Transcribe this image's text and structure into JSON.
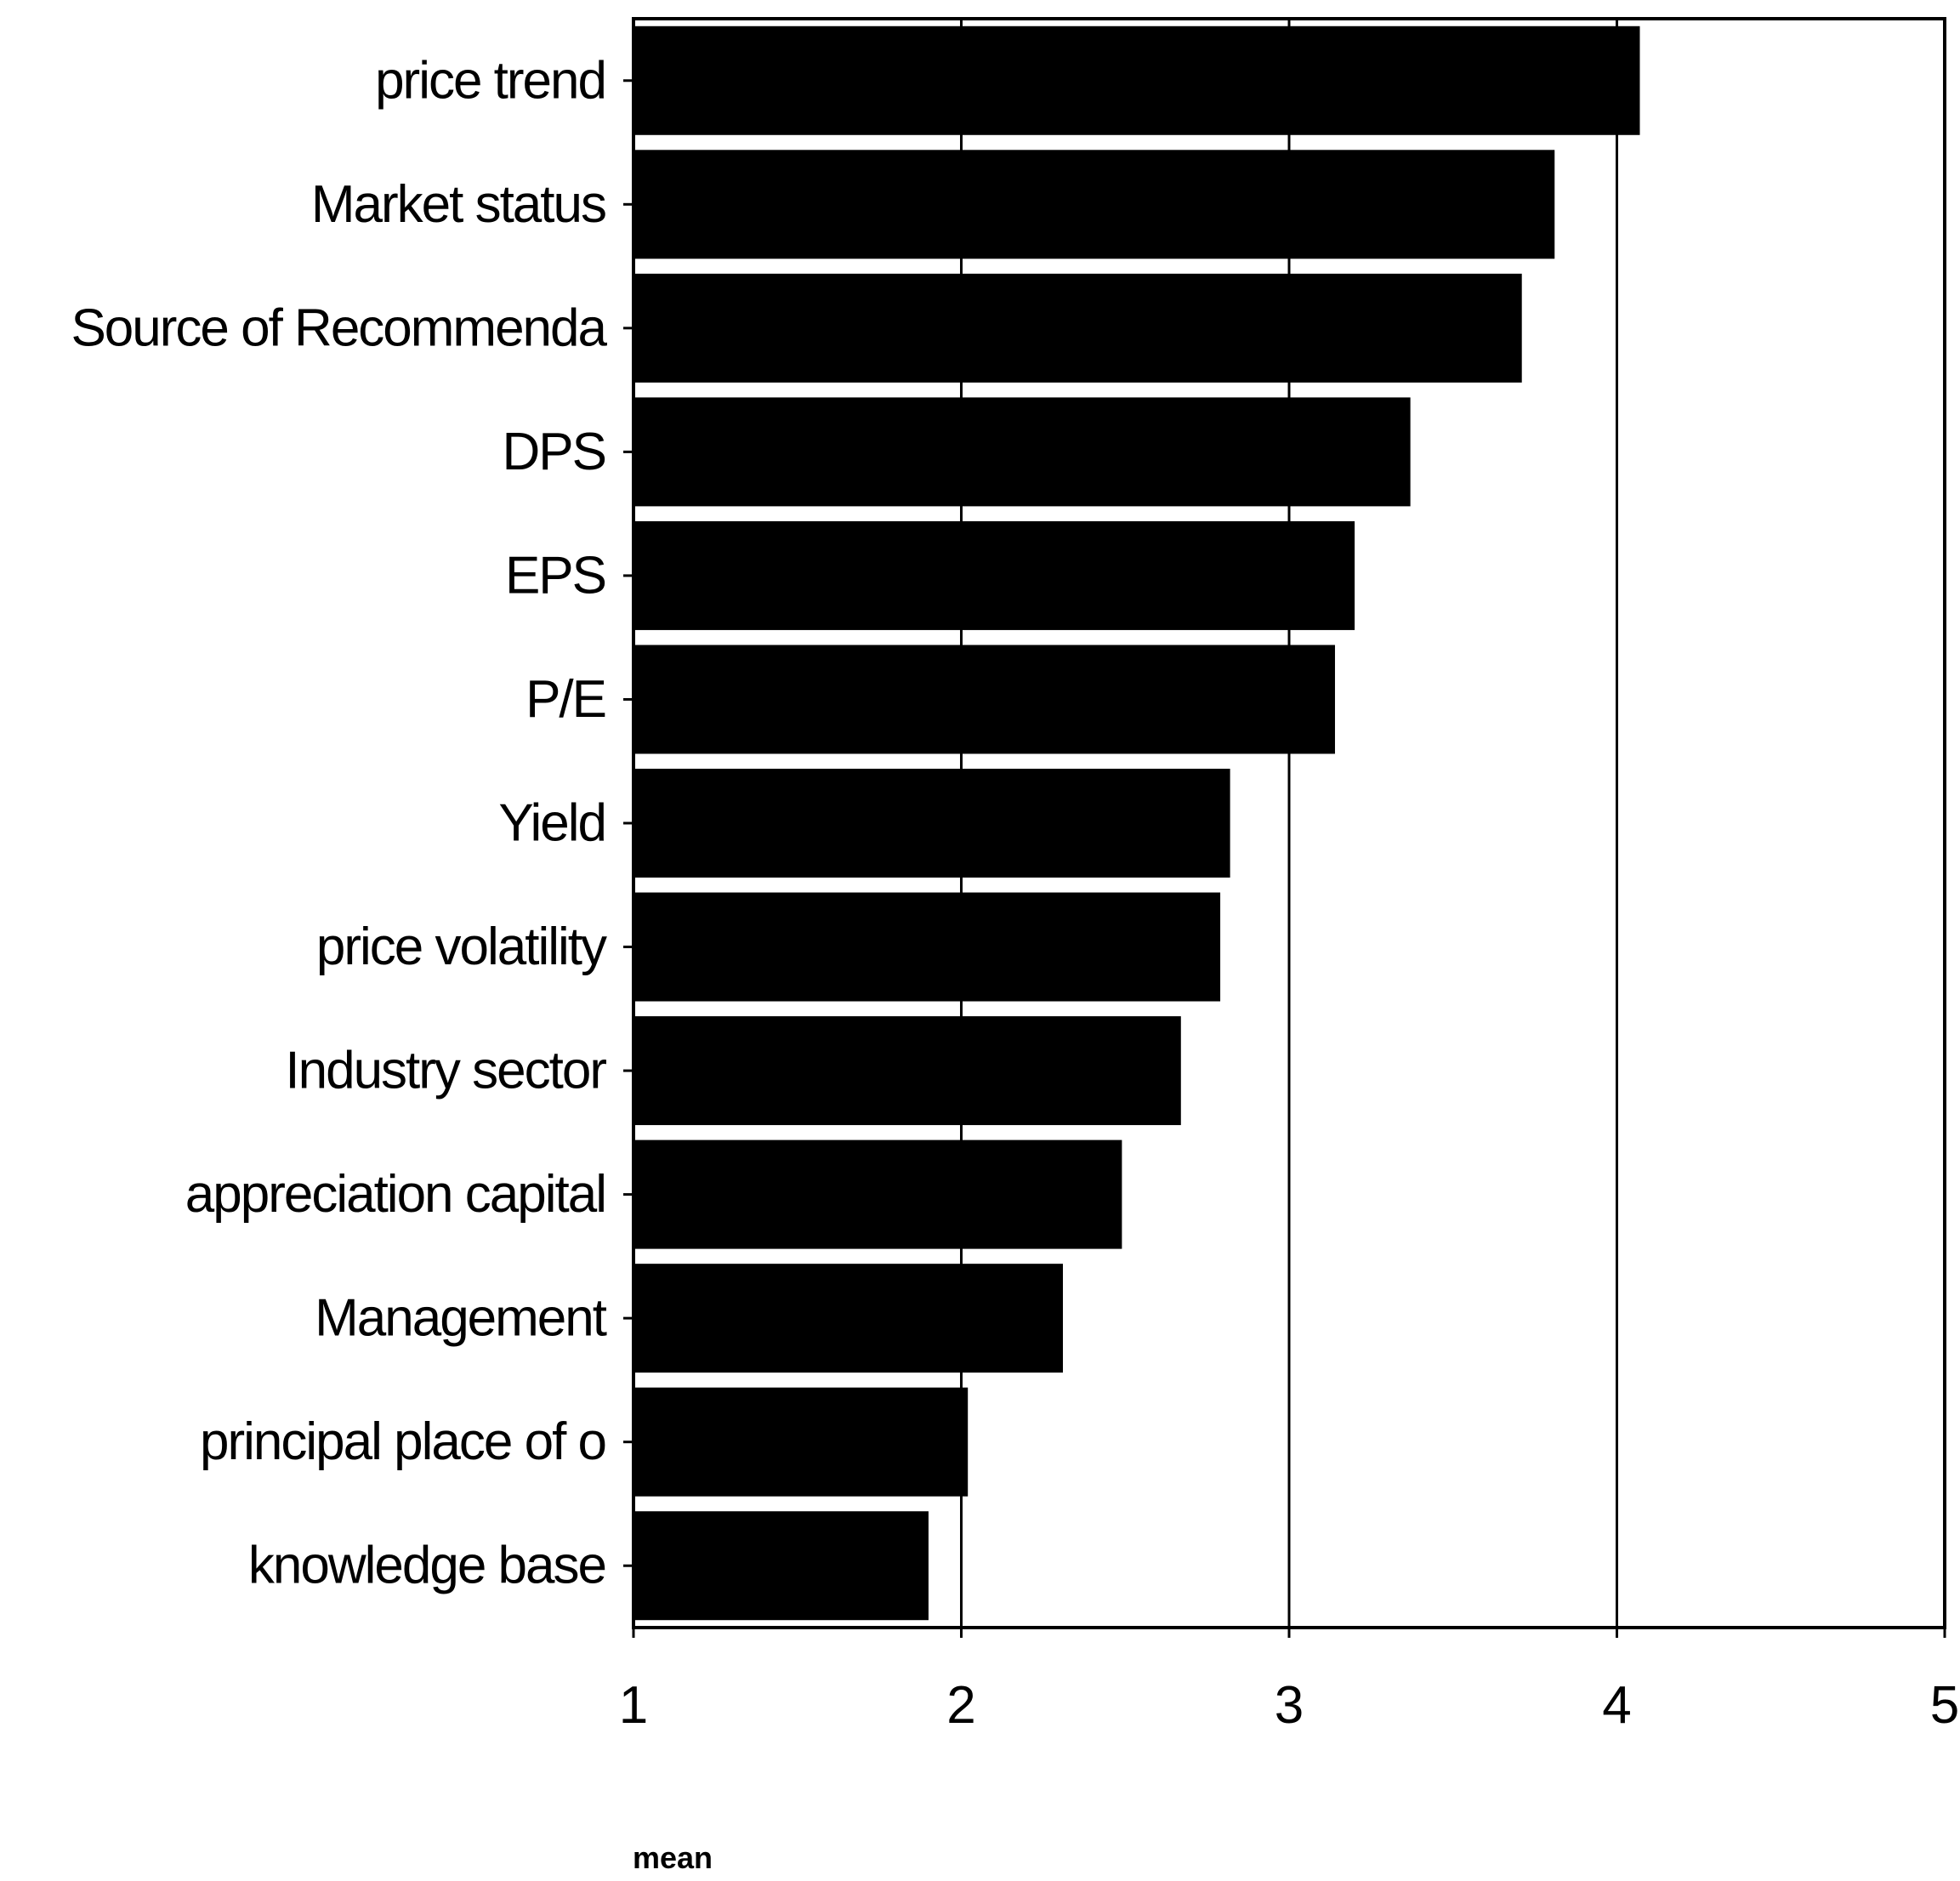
{
  "chart_data": {
    "type": "bar",
    "orientation": "horizontal",
    "title": "",
    "xlabel": "mean",
    "ylabel": "",
    "categories": [
      "price trend",
      "Market status",
      "Source of Recommenda",
      "DPS",
      "EPS",
      "P/E",
      "Yield",
      "price volatility",
      "Industry sector",
      "appreciation capital",
      "Management",
      "principal place of o",
      "knowledge base"
    ],
    "values": [
      4.07,
      3.81,
      3.71,
      3.37,
      3.2,
      3.14,
      2.82,
      2.79,
      2.67,
      2.49,
      2.31,
      2.02,
      1.9
    ],
    "xlim": [
      1,
      5
    ],
    "xticks": [
      "1",
      "2",
      "3",
      "4",
      "5"
    ],
    "grid": "vertical major gridlines",
    "legend": "none",
    "colors": {
      "bar": "#000000",
      "grid": "#000000",
      "background": "#ffffff",
      "text": "#000000"
    }
  }
}
